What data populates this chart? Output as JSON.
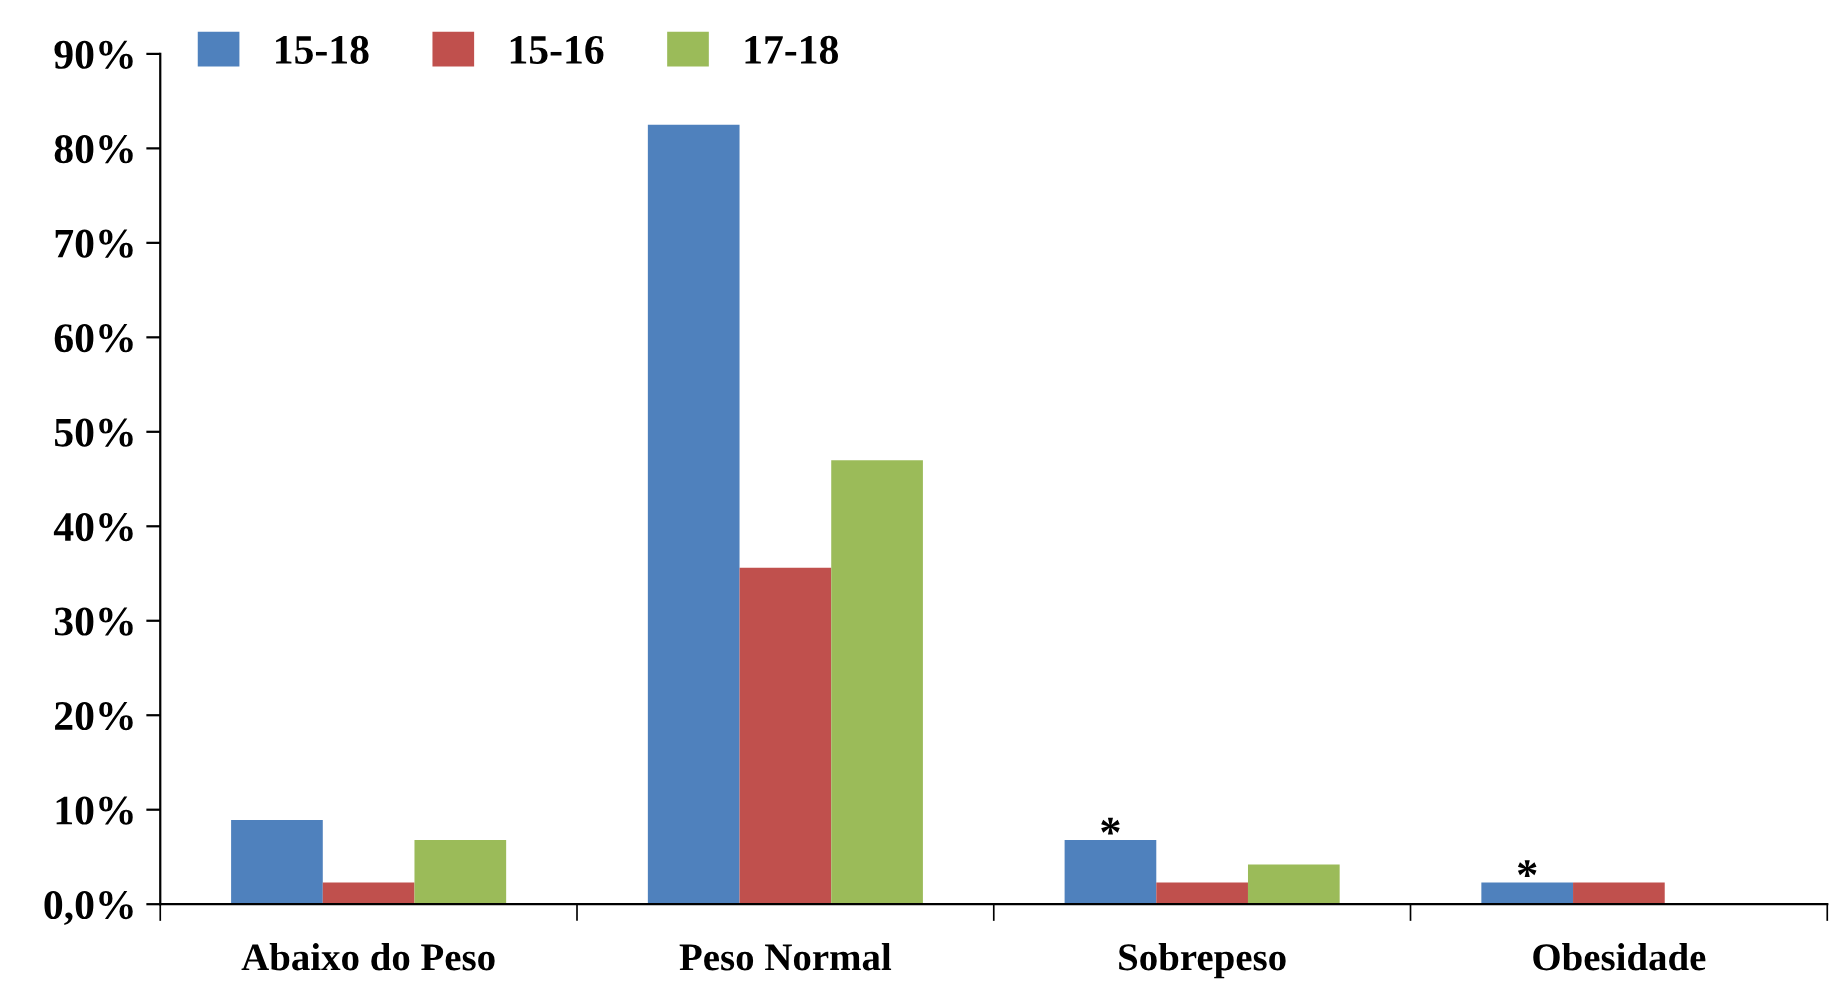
{
  "chart_data": {
    "type": "bar",
    "categories": [
      "Abaixo do Peso",
      "Peso Normal",
      "Sobrepeso",
      "Obesidade"
    ],
    "series": [
      {
        "name": "15-18",
        "color": "#4f81bd",
        "values": [
          8.9,
          82.5,
          6.8,
          2.3
        ]
      },
      {
        "name": "15-16",
        "color": "#c0504d",
        "values": [
          2.3,
          35.6,
          2.3,
          2.3
        ]
      },
      {
        "name": "17-18",
        "color": "#9bbb59",
        "values": [
          6.8,
          47.0,
          4.2,
          null
        ]
      }
    ],
    "ylim": [
      0,
      90
    ],
    "yticks": [
      {
        "value": 0,
        "label": "0,0%"
      },
      {
        "value": 10,
        "label": "10%"
      },
      {
        "value": 20,
        "label": "20%"
      },
      {
        "value": 30,
        "label": "30%"
      },
      {
        "value": 40,
        "label": "40%"
      },
      {
        "value": 50,
        "label": "50%"
      },
      {
        "value": 60,
        "label": "60%"
      },
      {
        "value": 70,
        "label": "70%"
      },
      {
        "value": 80,
        "label": "80%"
      },
      {
        "value": 90,
        "label": "90%"
      }
    ],
    "annotations": [
      "*",
      "*"
    ],
    "legend": "top left",
    "grid": false
  }
}
